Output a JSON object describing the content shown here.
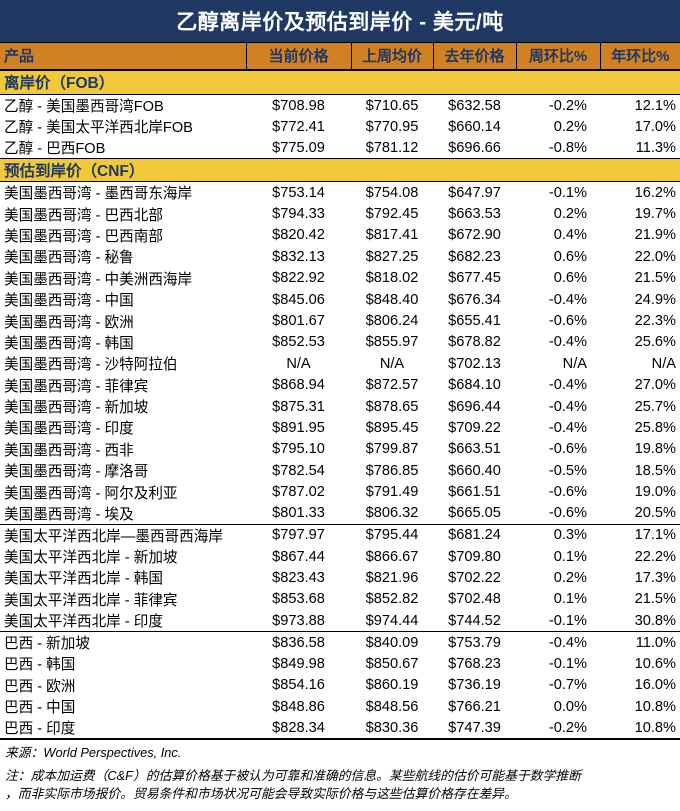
{
  "title": "乙醇离岸价及预估到岸价 - 美元/吨",
  "colors": {
    "header_navy": "#1F3864",
    "column_header_orange": "#CF8123",
    "section_yellow": "#F0C83A"
  },
  "table": {
    "columns": [
      "产品",
      "当前价格",
      "上周均价",
      "去年价格",
      "周环比%",
      "年环比%"
    ],
    "sections": [
      {
        "label": "离岸价（FOB）",
        "groups": [
          [
            {
              "product": "乙醇 - 美国墨西哥湾FOB",
              "current": "$708.98",
              "last_week": "$710.65",
              "last_year": "$632.58",
              "wow": "-0.2%",
              "yoy": "12.1%"
            },
            {
              "product": "乙醇 - 美国太平洋西北岸FOB",
              "current": "$772.41",
              "last_week": "$770.95",
              "last_year": "$660.14",
              "wow": "0.2%",
              "yoy": "17.0%"
            },
            {
              "product": "乙醇 - 巴西FOB",
              "current": "$775.09",
              "last_week": "$781.12",
              "last_year": "$696.66",
              "wow": "-0.8%",
              "yoy": "11.3%"
            }
          ]
        ]
      },
      {
        "label": "预估到岸价（CNF）",
        "groups": [
          [
            {
              "product": "美国墨西哥湾 - 墨西哥东海岸",
              "current": "$753.14",
              "last_week": "$754.08",
              "last_year": "$647.97",
              "wow": "-0.1%",
              "yoy": "16.2%"
            },
            {
              "product": "美国墨西哥湾 - 巴西北部",
              "current": "$794.33",
              "last_week": "$792.45",
              "last_year": "$663.53",
              "wow": "0.2%",
              "yoy": "19.7%"
            },
            {
              "product": "美国墨西哥湾 - 巴西南部",
              "current": "$820.42",
              "last_week": "$817.41",
              "last_year": "$672.90",
              "wow": "0.4%",
              "yoy": "21.9%"
            },
            {
              "product": "美国墨西哥湾 - 秘鲁",
              "current": "$832.13",
              "last_week": "$827.25",
              "last_year": "$682.23",
              "wow": "0.6%",
              "yoy": "22.0%"
            },
            {
              "product": "美国墨西哥湾 - 中美洲西海岸",
              "current": "$822.92",
              "last_week": "$818.02",
              "last_year": "$677.45",
              "wow": "0.6%",
              "yoy": "21.5%"
            },
            {
              "product": "美国墨西哥湾 - 中国",
              "current": "$845.06",
              "last_week": "$848.40",
              "last_year": "$676.34",
              "wow": "-0.4%",
              "yoy": "24.9%"
            },
            {
              "product": "美国墨西哥湾 - 欧洲",
              "current": "$801.67",
              "last_week": "$806.24",
              "last_year": "$655.41",
              "wow": "-0.6%",
              "yoy": "22.3%"
            },
            {
              "product": "美国墨西哥湾 - 韩国",
              "current": "$852.53",
              "last_week": "$855.97",
              "last_year": "$678.82",
              "wow": "-0.4%",
              "yoy": "25.6%"
            },
            {
              "product": "美国墨西哥湾 - 沙特阿拉伯",
              "current": "N/A",
              "last_week": "N/A",
              "last_year": "$702.13",
              "wow": "N/A",
              "yoy": "N/A"
            },
            {
              "product": "美国墨西哥湾 - 菲律宾",
              "current": "$868.94",
              "last_week": "$872.57",
              "last_year": "$684.10",
              "wow": "-0.4%",
              "yoy": "27.0%"
            },
            {
              "product": "美国墨西哥湾 - 新加坡",
              "current": "$875.31",
              "last_week": "$878.65",
              "last_year": "$696.44",
              "wow": "-0.4%",
              "yoy": "25.7%"
            },
            {
              "product": "美国墨西哥湾 - 印度",
              "current": "$891.95",
              "last_week": "$895.45",
              "last_year": "$709.22",
              "wow": "-0.4%",
              "yoy": "25.8%"
            },
            {
              "product": "美国墨西哥湾 - 西非",
              "current": "$795.10",
              "last_week": "$799.87",
              "last_year": "$663.51",
              "wow": "-0.6%",
              "yoy": "19.8%"
            },
            {
              "product": "美国墨西哥湾 - 摩洛哥",
              "current": "$782.54",
              "last_week": "$786.85",
              "last_year": "$660.40",
              "wow": "-0.5%",
              "yoy": "18.5%"
            },
            {
              "product": "美国墨西哥湾 - 阿尔及利亚",
              "current": "$787.02",
              "last_week": "$791.49",
              "last_year": "$661.51",
              "wow": "-0.6%",
              "yoy": "19.0%"
            },
            {
              "product": "美国墨西哥湾 - 埃及",
              "current": "$801.33",
              "last_week": "$806.32",
              "last_year": "$665.05",
              "wow": "-0.6%",
              "yoy": "20.5%"
            }
          ],
          [
            {
              "product": "美国太平洋西北岸—墨西哥西海岸",
              "current": "$797.97",
              "last_week": "$795.44",
              "last_year": "$681.24",
              "wow": "0.3%",
              "yoy": "17.1%"
            },
            {
              "product": "美国太平洋西北岸 - 新加坡",
              "current": "$867.44",
              "last_week": "$866.67",
              "last_year": "$709.80",
              "wow": "0.1%",
              "yoy": "22.2%"
            },
            {
              "product": "美国太平洋西北岸 - 韩国",
              "current": "$823.43",
              "last_week": "$821.96",
              "last_year": "$702.22",
              "wow": "0.2%",
              "yoy": "17.3%"
            },
            {
              "product": "美国太平洋西北岸 - 菲律宾",
              "current": "$853.68",
              "last_week": "$852.82",
              "last_year": "$702.48",
              "wow": "0.1%",
              "yoy": "21.5%"
            },
            {
              "product": "美国太平洋西北岸 - 印度",
              "current": "$973.88",
              "last_week": "$974.44",
              "last_year": "$744.52",
              "wow": "-0.1%",
              "yoy": "30.8%"
            }
          ],
          [
            {
              "product": "巴西 - 新加坡",
              "current": "$836.58",
              "last_week": "$840.09",
              "last_year": "$753.79",
              "wow": "-0.4%",
              "yoy": "11.0%"
            },
            {
              "product": "巴西 - 韩国",
              "current": "$849.98",
              "last_week": "$850.67",
              "last_year": "$768.23",
              "wow": "-0.1%",
              "yoy": "10.6%"
            },
            {
              "product": "巴西 - 欧洲",
              "current": "$854.16",
              "last_week": "$860.19",
              "last_year": "$736.19",
              "wow": "-0.7%",
              "yoy": "16.0%"
            },
            {
              "product": "巴西 - 中国",
              "current": "$848.86",
              "last_week": "$848.56",
              "last_year": "$766.21",
              "wow": "0.0%",
              "yoy": "10.8%"
            },
            {
              "product": "巴西 - 印度",
              "current": "$828.34",
              "last_week": "$830.36",
              "last_year": "$747.39",
              "wow": "-0.2%",
              "yoy": "10.8%"
            }
          ]
        ]
      }
    ]
  },
  "footer": {
    "source": "来源：World Perspectives, Inc.",
    "note_line1": "注：成本加运费（C&F）的估算价格基于被认为可靠和准确的信息。某些航线的估价可能基于数学推断",
    "note_line2": "，而非实际市场报价。贸易条件和市场状况可能会导致实际价格与这些估算价格存在差异。"
  }
}
